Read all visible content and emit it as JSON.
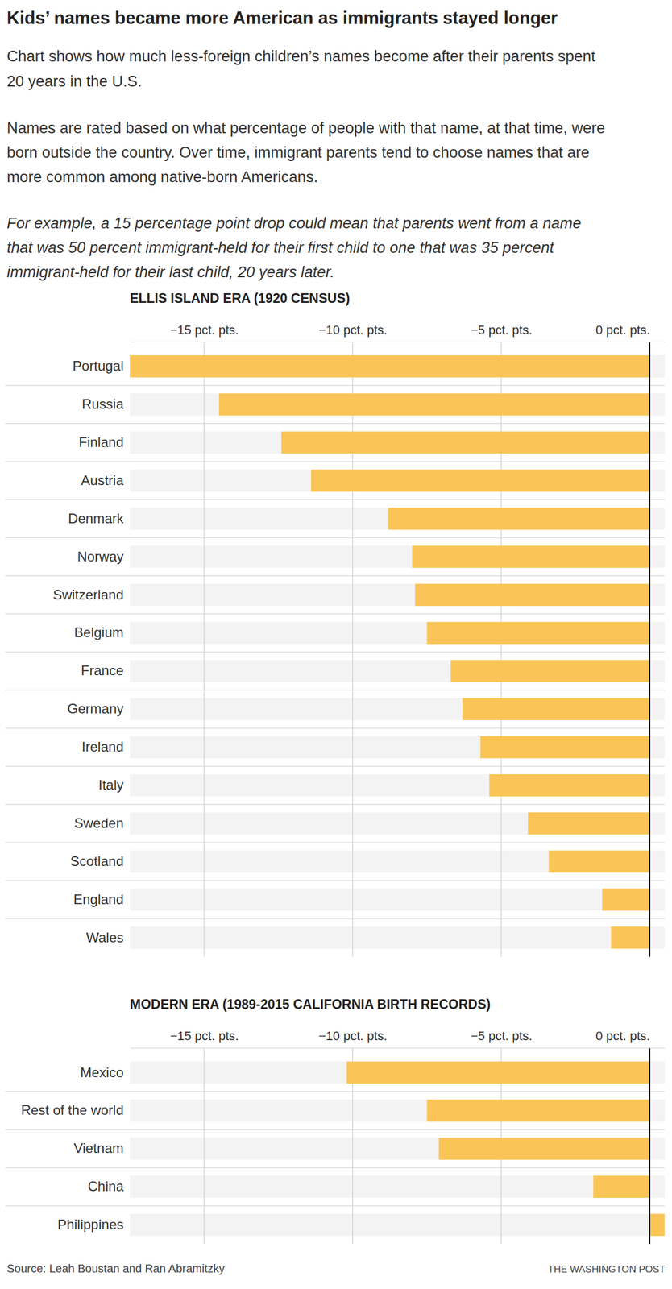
{
  "header": {
    "title": "Kids’ names became more American as immigrants stayed longer",
    "subtitle": "Chart shows how much less-foreign children’s names become after their parents spent 20 years in the U.S.",
    "description": "Names are rated based on what percentage of people with that name, at that time, were born outside the country. Over time, immigrant parents tend to choose names that are more common among native-born Americans.",
    "example": "For example, a 15 percentage point drop could mean that parents went from a name that was 50 percent immigrant-held for their first child to one that was 35 percent immigrant-held for their last child, 20 years later."
  },
  "chart_data": [
    {
      "type": "bar",
      "orientation": "horizontal",
      "title": "ELLIS ISLAND ERA (1920 CENSUS)",
      "categories": [
        "Portugal",
        "Russia",
        "Finland",
        "Austria",
        "Denmark",
        "Norway",
        "Switzerland",
        "Belgium",
        "France",
        "Germany",
        "Ireland",
        "Italy",
        "Sweden",
        "Scotland",
        "England",
        "Wales"
      ],
      "values": [
        -17.5,
        -14.5,
        -12.4,
        -11.4,
        -8.8,
        -8.0,
        -7.9,
        -7.5,
        -6.7,
        -6.3,
        -5.7,
        -5.4,
        -4.1,
        -3.4,
        -1.6,
        -1.3
      ],
      "color": "#fac556",
      "xlim": [
        -17.5,
        0.5
      ],
      "xticks": [
        {
          "value": -15,
          "label": "−15 pct. pts."
        },
        {
          "value": -10,
          "label": "−10 pct. pts."
        },
        {
          "value": -5,
          "label": "−5 pct. pts."
        },
        {
          "value": 0,
          "label": "0 pct. pts."
        }
      ],
      "grid": true
    },
    {
      "type": "bar",
      "orientation": "horizontal",
      "title": "MODERN ERA (1989-2015 CALIFORNIA BIRTH RECORDS)",
      "categories": [
        "Mexico",
        "Rest of the world",
        "Vietnam",
        "China",
        "Philippines"
      ],
      "values": [
        -10.2,
        -7.5,
        -7.1,
        -1.9,
        0.5
      ],
      "color": "#fac556",
      "xlim": [
        -17.5,
        0.5
      ],
      "xticks": [
        {
          "value": -15,
          "label": "−15 pct. pts."
        },
        {
          "value": -10,
          "label": "−10 pct. pts."
        },
        {
          "value": -5,
          "label": "−5 pct. pts."
        },
        {
          "value": 0,
          "label": "0 pct. pts."
        }
      ],
      "grid": true
    }
  ],
  "footer": {
    "source": "Source: Leah Boustan and Ran Abramitzky",
    "credit": "THE WASHINGTON POST"
  }
}
